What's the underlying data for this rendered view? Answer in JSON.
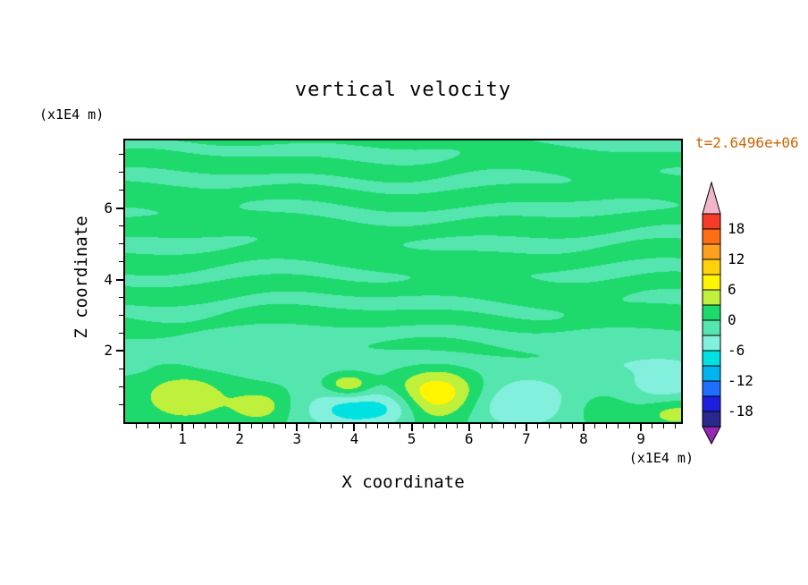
{
  "page": {
    "background_color": "#ffffff"
  },
  "chart": {
    "title": "vertical velocity",
    "time_label": "t=2.6496e+06",
    "time_label_color": "#cc6600",
    "x_axis": {
      "label": "X coordinate",
      "unit": "(x1E4 m)",
      "min": 0,
      "max": 9.7,
      "major_ticks": [
        1,
        2,
        3,
        4,
        5,
        6,
        7,
        8,
        9
      ],
      "minor_step": 0.2
    },
    "y_axis": {
      "label": "Z coordinate",
      "unit": "(x1E4 m)",
      "min": 0,
      "max": 7.9,
      "major_ticks": [
        2,
        4,
        6
      ],
      "minor_step": 0.5
    },
    "colorbar": {
      "labels": [
        "18",
        "12",
        "6",
        "0",
        "-6",
        "-12",
        "-18"
      ],
      "label_values": [
        18,
        12,
        6,
        0,
        -6,
        -12,
        -18
      ],
      "level_max": 21,
      "level_step": 3,
      "over_color": "#f2b4c8",
      "under_color": "#9628b4",
      "colors_top_to_bottom": [
        "#f53c28",
        "#ff6e14",
        "#ffa01e",
        "#ffd20a",
        "#fff500",
        "#bef03c",
        "#1ed96b",
        "#55e6af",
        "#82f0dc",
        "#00e1e1",
        "#00b4f0",
        "#1e6eff",
        "#1e1ee1",
        "#28288e"
      ]
    }
  },
  "chart_data": {
    "type": "heatmap",
    "title": "vertical velocity",
    "xlabel": "X coordinate (x1E4 m)",
    "ylabel": "Z coordinate (x1E4 m)",
    "time_annotation": "t=2.6496e+06",
    "x_range": [
      0,
      9.7
    ],
    "z_range": [
      0,
      7.9
    ],
    "contour_levels": [
      -21,
      -18,
      -15,
      -12,
      -9,
      -6,
      -3,
      0,
      3,
      6,
      9,
      12,
      15,
      18,
      21
    ],
    "legend_position": "right colorbar with over/under arrows",
    "description": "Filled-contour vertical velocity field. Above z=2 the field stays near zero: thin wavy horizontal streaks alternating between the 0..3 (green) and -3..0 (sea-green) bands. Below z=2 a row of stronger convective cells: updraft maxima (+4 to +10) near x=1.0, 2.3, 3.9, 5.5 and 9.6; downdraft minima (-4 to -7.5) near x=4.0, 4.7, 6.9 and 9.4; strongest updraft about +9 at x=5.5, z=0.8 (yellow core).",
    "field_model": {
      "streaks": {
        "bias": 0.35,
        "amplitude": 1.5,
        "kz": 7.2,
        "amp_mod": [
          0.7,
          0.5,
          0.75,
          1.6
        ],
        "phase_terms": [
          [
            1.1,
            0.85,
            0.55,
            0.0
          ],
          [
            0.7,
            1.9,
            -0.4,
            1.3
          ],
          [
            0.5,
            0.33,
            0.0,
            2.0
          ]
        ],
        "harmonic": [
          0.4,
          3.3,
          1.15
        ],
        "fade_z": [
          1.15,
          2.05
        ]
      },
      "features": [
        {
          "x": 1.05,
          "z": 0.75,
          "sx": 0.55,
          "sz": 0.5,
          "amp": 5.0
        },
        {
          "x": 2.35,
          "z": 0.45,
          "sx": 0.33,
          "sz": 0.3,
          "amp": 4.4
        },
        {
          "x": 3.9,
          "z": 1.05,
          "sx": 0.27,
          "sz": 0.23,
          "amp": 6.8
        },
        {
          "x": 3.95,
          "z": 0.35,
          "sx": 0.6,
          "sz": 0.42,
          "amp": -7.5
        },
        {
          "x": 4.7,
          "z": 0.45,
          "sx": 0.35,
          "sz": 0.35,
          "amp": -4.0
        },
        {
          "x": 5.45,
          "z": 0.8,
          "sx": 0.55,
          "sz": 0.5,
          "amp": 9.3
        },
        {
          "x": 6.9,
          "z": 0.5,
          "sx": 0.8,
          "sz": 0.5,
          "amp": -6.5
        },
        {
          "x": 8.15,
          "z": 0.4,
          "sx": 0.5,
          "sz": 0.35,
          "amp": 2.2
        },
        {
          "x": 9.45,
          "z": 1.0,
          "sx": 0.5,
          "sz": 0.45,
          "amp": -5.0
        },
        {
          "x": 9.6,
          "z": 0.3,
          "sx": 0.4,
          "sz": 0.3,
          "amp": 4.8
        },
        {
          "x": 5.0,
          "z": 1.7,
          "sx": 3.5,
          "sz": 0.45,
          "amp": -1.9
        },
        {
          "x": 1.2,
          "z": 1.9,
          "sx": 1.2,
          "sz": 0.35,
          "amp": -1.3
        },
        {
          "x": 8.8,
          "z": 1.8,
          "sx": 1.2,
          "sz": 0.4,
          "amp": -1.2
        }
      ]
    }
  }
}
